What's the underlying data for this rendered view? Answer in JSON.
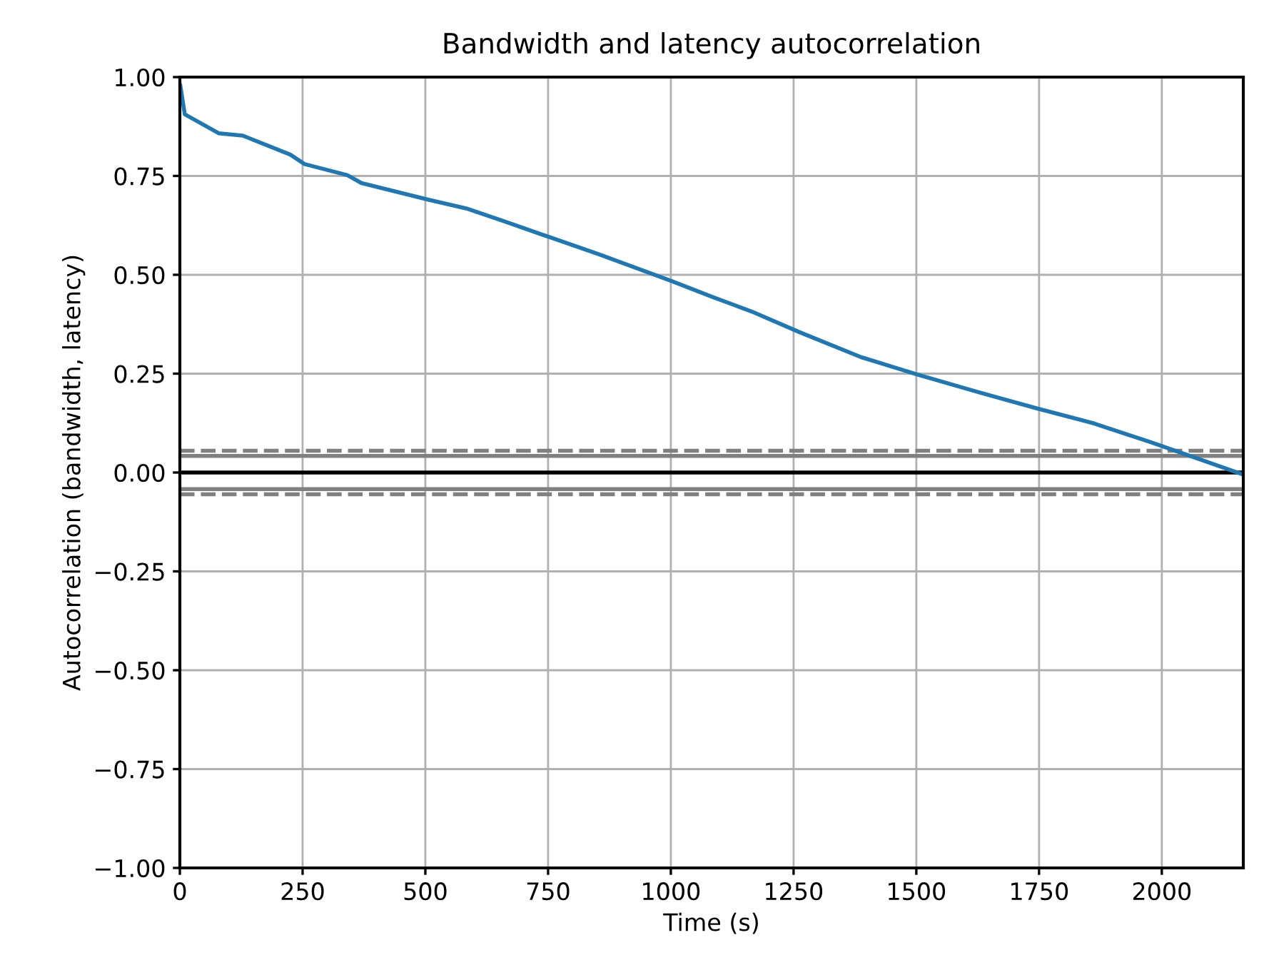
{
  "chart_data": {
    "type": "line",
    "title": "Bandwidth and latency autocorrelation",
    "xlabel": "Time (s)",
    "ylabel": "Autocorrelation (bandwidth, latency)",
    "x": [
      1,
      10,
      79,
      128,
      225,
      254,
      341,
      370,
      506,
      583,
      661,
      758,
      855,
      1000,
      1087,
      1165,
      1262,
      1387,
      1504,
      1630,
      1746,
      1862,
      1979,
      2085,
      2161
    ],
    "series": [
      {
        "color": "#1f77b4",
        "values": [
          0.978,
          0.906,
          0.858,
          0.852,
          0.804,
          0.78,
          0.752,
          0.732,
          0.69,
          0.668,
          0.635,
          0.593,
          0.551,
          0.485,
          0.443,
          0.407,
          0.355,
          0.292,
          0.247,
          0.202,
          0.162,
          0.124,
          0.076,
          0.03,
          -0.003
        ]
      }
    ],
    "xlim": [
      0,
      2166
    ],
    "xticks": [
      0,
      250,
      500,
      750,
      1000,
      1250,
      1500,
      1750,
      2000
    ],
    "ylim": [
      -1.0,
      1.0
    ],
    "yticks": [
      {
        "value": -1.0,
        "label": "−1.00"
      },
      {
        "value": -0.75,
        "label": "−0.75"
      },
      {
        "value": -0.5,
        "label": "−0.50"
      },
      {
        "value": -0.25,
        "label": "−0.25"
      },
      {
        "value": 0,
        "label": "0.00"
      },
      {
        "value": 0.25,
        "label": "0.25"
      },
      {
        "value": 0.5,
        "label": "0.50"
      },
      {
        "value": 0.75,
        "label": "0.75"
      },
      {
        "value": 1.0,
        "label": "1.00"
      }
    ],
    "ref_lines": [
      {
        "axis": "y",
        "value": 0.042,
        "color": "#808080",
        "line_style": "solid"
      },
      {
        "axis": "y",
        "value": 0.055,
        "color": "#808080",
        "line_style": "dashed"
      },
      {
        "axis": "y",
        "value": 0,
        "color": "#000000",
        "line_style": "solid"
      },
      {
        "axis": "y",
        "value": -0.042,
        "color": "#808080",
        "line_style": "solid"
      },
      {
        "axis": "y",
        "value": -0.055,
        "color": "#808080",
        "line_style": "dashed"
      }
    ],
    "grid": true
  }
}
